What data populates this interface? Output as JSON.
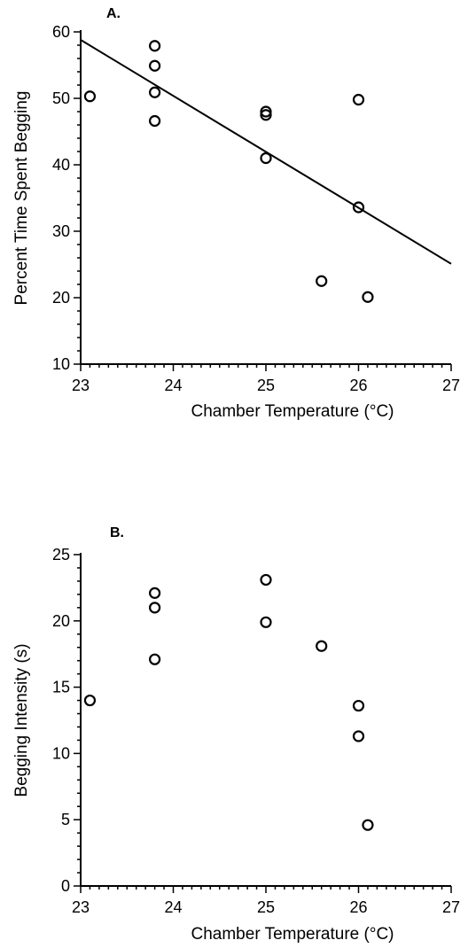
{
  "chart_data": [
    {
      "type": "scatter",
      "panel_label": "A.",
      "xlabel": "Chamber Temperature (°C)",
      "ylabel": "Percent Time Spent Begging",
      "xlim": [
        23,
        27
      ],
      "ylim": [
        10,
        60
      ],
      "xticks": [
        "23",
        "24",
        "25",
        "26",
        "27"
      ],
      "yticks": [
        "10",
        "20",
        "30",
        "40",
        "50",
        "60"
      ],
      "x": [
        23.1,
        23.8,
        23.8,
        23.8,
        23.8,
        25.0,
        25.0,
        25.0,
        25.6,
        26.0,
        26.0,
        26.1
      ],
      "y": [
        50.3,
        57.9,
        54.9,
        50.9,
        46.6,
        48.0,
        47.5,
        41.0,
        22.5,
        49.8,
        33.6,
        20.1
      ],
      "regression_line": {
        "x": [
          23,
          27
        ],
        "y": [
          58.8,
          25.1
        ]
      },
      "grid": false
    },
    {
      "type": "scatter",
      "panel_label": "B.",
      "xlabel": "Chamber Temperature (°C)",
      "ylabel": "Begging Intensity (s)",
      "xlim": [
        23,
        27
      ],
      "ylim": [
        0,
        25
      ],
      "xticks": [
        "23",
        "24",
        "25",
        "26",
        "27"
      ],
      "yticks": [
        "0",
        "5",
        "10",
        "15",
        "20",
        "25"
      ],
      "x": [
        23.1,
        23.8,
        23.8,
        23.8,
        25.0,
        25.0,
        25.6,
        26.0,
        26.0,
        26.1
      ],
      "y": [
        14.0,
        22.1,
        21.0,
        17.1,
        23.1,
        19.9,
        18.1,
        13.6,
        11.3,
        4.6
      ],
      "grid": false
    }
  ]
}
